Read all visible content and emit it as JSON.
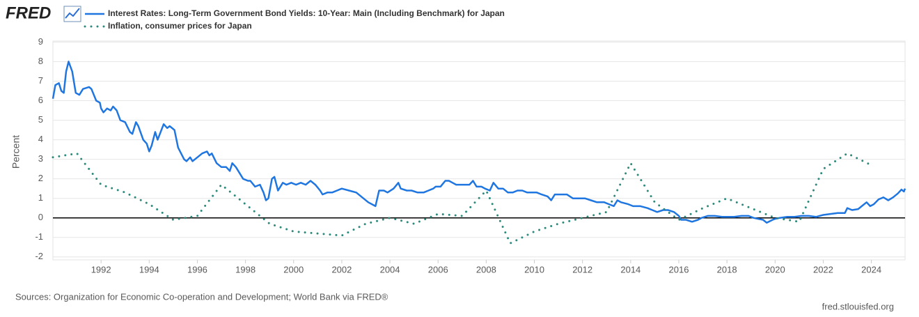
{
  "chart_data": {
    "type": "line",
    "logo": "FRED",
    "ylabel": "Percent",
    "source": "Sources: Organization for Economic Co-operation and Development; World Bank via FRED®",
    "footer": "fred.stlouisfed.org",
    "xlim": [
      1990,
      2025.4
    ],
    "xticks": [
      1992,
      1994,
      1996,
      1998,
      2000,
      2002,
      2004,
      2006,
      2008,
      2010,
      2012,
      2014,
      2016,
      2018,
      2020,
      2022,
      2024
    ],
    "ylim": [
      -2.15,
      9.05
    ],
    "yticks": [
      -2,
      -1,
      0,
      1,
      2,
      3,
      4,
      5,
      6,
      7,
      8,
      9
    ],
    "grid": true,
    "zero_line": true,
    "series": [
      {
        "name": "Interest Rates: Long-Term Government Bond Yields: 10-Year: Main (Including Benchmark) for Japan",
        "color": "#1f76e0",
        "style": "solid",
        "x": [
          1990.0,
          1990.1,
          1990.25,
          1990.35,
          1990.45,
          1990.55,
          1990.65,
          1990.8,
          1990.95,
          1991.1,
          1991.25,
          1991.5,
          1991.6,
          1991.8,
          1991.95,
          1992.0,
          1992.1,
          1992.25,
          1992.4,
          1992.5,
          1992.65,
          1992.8,
          1993.0,
          1993.2,
          1993.3,
          1993.45,
          1993.55,
          1993.75,
          1993.9,
          1994.0,
          1994.1,
          1994.25,
          1994.35,
          1994.6,
          1994.75,
          1994.85,
          1995.05,
          1995.2,
          1995.45,
          1995.55,
          1995.7,
          1995.8,
          1996.0,
          1996.2,
          1996.4,
          1996.5,
          1996.6,
          1996.8,
          1997.0,
          1997.2,
          1997.35,
          1997.45,
          1997.6,
          1997.9,
          1998.1,
          1998.2,
          1998.4,
          1998.6,
          1998.75,
          1998.85,
          1998.95,
          1999.1,
          1999.2,
          1999.35,
          1999.55,
          1999.7,
          1999.9,
          2000.1,
          2000.3,
          2000.5,
          2000.7,
          2000.9,
          2001.1,
          2001.2,
          2001.4,
          2001.6,
          2001.8,
          2002.0,
          2002.3,
          2002.6,
          2002.9,
          2003.1,
          2003.4,
          2003.55,
          2003.75,
          2003.9,
          2004.15,
          2004.35,
          2004.45,
          2004.7,
          2004.9,
          2005.15,
          2005.4,
          2005.6,
          2005.8,
          2005.9,
          2006.1,
          2006.3,
          2006.45,
          2006.6,
          2006.75,
          2006.9,
          2007.1,
          2007.3,
          2007.45,
          2007.6,
          2007.8,
          2007.95,
          2008.15,
          2008.3,
          2008.5,
          2008.7,
          2008.9,
          2009.1,
          2009.3,
          2009.5,
          2009.7,
          2009.9,
          2010.1,
          2010.3,
          2010.55,
          2010.7,
          2010.85,
          2011.1,
          2011.35,
          2011.6,
          2011.9,
          2012.1,
          2012.35,
          2012.6,
          2012.9,
          2013.1,
          2013.3,
          2013.45,
          2013.6,
          2013.9,
          2014.1,
          2014.4,
          2014.7,
          2014.9,
          2015.1,
          2015.35,
          2015.55,
          2015.8,
          2016.0,
          2016.1,
          2016.3,
          2016.55,
          2016.8,
          2016.95,
          2017.2,
          2017.5,
          2017.8,
          2018.0,
          2018.3,
          2018.6,
          2018.9,
          2019.1,
          2019.3,
          2019.5,
          2019.65,
          2019.9,
          2020.0,
          2020.2,
          2020.5,
          2020.8,
          2021.1,
          2021.4,
          2021.7,
          2022.0,
          2022.3,
          2022.6,
          2022.9,
          2023.0,
          2023.2,
          2023.45,
          2023.6,
          2023.8,
          2023.95,
          2024.1,
          2024.3,
          2024.5,
          2024.7,
          2024.9,
          2025.1,
          2025.25,
          2025.35,
          2025.4
        ],
        "values": [
          6.1,
          6.8,
          6.9,
          6.5,
          6.4,
          7.5,
          8.0,
          7.5,
          6.4,
          6.3,
          6.6,
          6.7,
          6.6,
          6.0,
          5.9,
          5.6,
          5.4,
          5.6,
          5.5,
          5.7,
          5.5,
          5.0,
          4.9,
          4.4,
          4.3,
          4.9,
          4.7,
          4.0,
          3.8,
          3.4,
          3.7,
          4.4,
          4.0,
          4.8,
          4.6,
          4.7,
          4.5,
          3.6,
          3.0,
          2.9,
          3.1,
          2.9,
          3.1,
          3.3,
          3.4,
          3.2,
          3.3,
          2.8,
          2.6,
          2.6,
          2.4,
          2.8,
          2.6,
          2.0,
          1.9,
          1.9,
          1.6,
          1.7,
          1.3,
          0.9,
          1.0,
          2.0,
          2.1,
          1.4,
          1.8,
          1.7,
          1.8,
          1.7,
          1.8,
          1.7,
          1.9,
          1.7,
          1.4,
          1.2,
          1.3,
          1.3,
          1.4,
          1.5,
          1.4,
          1.3,
          1.0,
          0.8,
          0.6,
          1.4,
          1.4,
          1.3,
          1.5,
          1.8,
          1.5,
          1.4,
          1.4,
          1.3,
          1.3,
          1.4,
          1.5,
          1.6,
          1.6,
          1.9,
          1.9,
          1.8,
          1.7,
          1.7,
          1.7,
          1.7,
          1.9,
          1.6,
          1.6,
          1.5,
          1.4,
          1.8,
          1.5,
          1.5,
          1.3,
          1.3,
          1.4,
          1.4,
          1.3,
          1.3,
          1.3,
          1.2,
          1.1,
          0.9,
          1.2,
          1.2,
          1.2,
          1.0,
          1.0,
          1.0,
          0.9,
          0.8,
          0.8,
          0.7,
          0.6,
          0.9,
          0.8,
          0.7,
          0.6,
          0.6,
          0.5,
          0.4,
          0.3,
          0.4,
          0.4,
          0.3,
          0.1,
          -0.1,
          -0.1,
          -0.2,
          -0.1,
          0.0,
          0.1,
          0.1,
          0.05,
          0.05,
          0.05,
          0.1,
          0.1,
          0.0,
          -0.05,
          -0.1,
          -0.25,
          -0.1,
          -0.05,
          0.0,
          0.05,
          0.05,
          0.1,
          0.1,
          0.05,
          0.15,
          0.2,
          0.25,
          0.25,
          0.5,
          0.4,
          0.45,
          0.6,
          0.8,
          0.6,
          0.7,
          0.95,
          1.05,
          0.9,
          1.05,
          1.25,
          1.45,
          1.35,
          1.5
        ]
      },
      {
        "name": "Inflation, consumer prices for Japan",
        "color": "#2b8a7c",
        "style": "dotted",
        "x": [
          1990,
          1991,
          1992,
          1993,
          1994,
          1995,
          1996,
          1997,
          1998,
          1999,
          2000,
          2001,
          2002,
          2003,
          2004,
          2005,
          2006,
          2007,
          2008,
          2009,
          2010,
          2011,
          2012,
          2013,
          2014,
          2015,
          2016,
          2017,
          2018,
          2019,
          2020,
          2021,
          2022,
          2023,
          2024
        ],
        "values": [
          3.1,
          3.3,
          1.7,
          1.3,
          0.7,
          -0.1,
          0.1,
          1.7,
          0.7,
          -0.3,
          -0.7,
          -0.8,
          -0.9,
          -0.3,
          0.0,
          -0.3,
          0.2,
          0.1,
          1.4,
          -1.3,
          -0.7,
          -0.3,
          0.0,
          0.3,
          2.8,
          0.8,
          -0.1,
          0.5,
          1.0,
          0.5,
          0.0,
          -0.2,
          2.5,
          3.3,
          2.7
        ]
      }
    ]
  }
}
